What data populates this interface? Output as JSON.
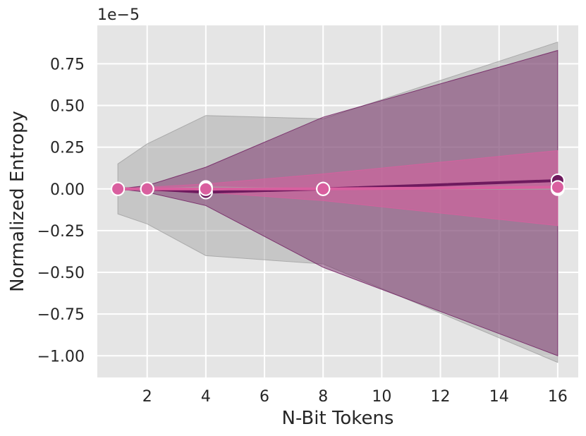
{
  "chart_data": {
    "type": "line",
    "xlabel": "N-Bit Tokens",
    "ylabel": "Normalized Entropy",
    "scale_label": "1e−5",
    "xlim": [
      0.3,
      16.7
    ],
    "ylim": [
      -1.13,
      0.98
    ],
    "grid": true,
    "legend": "none",
    "x_ticks": [
      2,
      4,
      6,
      8,
      10,
      12,
      14,
      16
    ],
    "x_tick_labels": [
      "2",
      "4",
      "6",
      "8",
      "10",
      "12",
      "14",
      "16"
    ],
    "y_ticks": [
      0.75,
      0.5,
      0.25,
      0.0,
      -0.25,
      -0.5,
      -0.75,
      -1.0
    ],
    "y_tick_labels": [
      "0.75",
      "0.50",
      "0.25",
      "0.00",
      "−0.25",
      "−0.50",
      "−0.75",
      "−1.00"
    ],
    "x": [
      1,
      2,
      4,
      8,
      16
    ],
    "series": [
      {
        "color": "#a0a0a0",
        "band_opacity": 0.45,
        "marker_color": "#ffffff",
        "values": [
          0.0,
          0.0,
          0.01,
          0.0,
          0.0
        ],
        "lower": [
          -0.15,
          -0.21,
          -0.4,
          -0.45,
          -1.04
        ],
        "upper": [
          0.15,
          0.27,
          0.44,
          0.42,
          0.88
        ]
      },
      {
        "color": "#6e1a5e",
        "band_opacity": 0.45,
        "marker_color": "#6e1a5e",
        "values": [
          0.0,
          0.0,
          -0.02,
          0.0,
          0.05
        ],
        "lower": [
          0.0,
          -0.02,
          -0.1,
          -0.47,
          -1.0
        ],
        "upper": [
          0.0,
          0.02,
          0.13,
          0.43,
          0.83
        ]
      },
      {
        "color": "#d95f9f",
        "band_opacity": 0.55,
        "marker_color": "#d95f9f",
        "values": [
          0.0,
          0.0,
          0.0,
          0.0,
          0.01
        ],
        "lower": [
          0.0,
          -0.01,
          -0.02,
          -0.07,
          -0.22
        ],
        "upper": [
          0.0,
          0.01,
          0.03,
          0.09,
          0.23
        ]
      }
    ]
  }
}
